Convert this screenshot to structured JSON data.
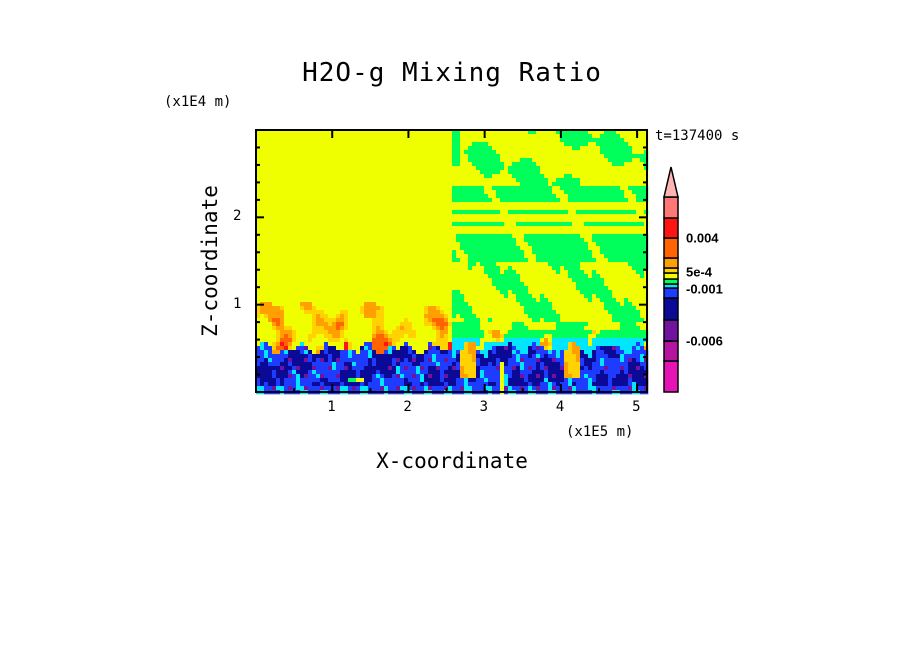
{
  "chart_data": {
    "type": "heatmap",
    "title": "H2O-g Mixing Ratio",
    "xlabel": "X-coordinate",
    "ylabel": "Z-coordinate",
    "x_unit": "(x1E5 m)",
    "y_unit": "(x1E4 m)",
    "xlim": [
      0,
      5.13
    ],
    "ylim": [
      0,
      3.0
    ],
    "x_ticks": [
      "1",
      "2",
      "3",
      "4",
      "5"
    ],
    "x_tick_values": [
      1,
      2,
      3,
      4,
      5
    ],
    "y_ticks": [
      "1",
      "2"
    ],
    "y_tick_values": [
      1,
      2
    ],
    "annotation": "t=137400 s",
    "colorbar": {
      "labels": [
        "0.004",
        "5e-4",
        "-0.001",
        "-0.006"
      ],
      "levels_bottom_to_top": [
        {
          "color": "#e614b4"
        },
        {
          "color": "#b414a0"
        },
        {
          "color": "#7014a0"
        },
        {
          "color": "#0a0a96"
        },
        {
          "color": "#1e3cff"
        },
        {
          "color": "#00e6ff"
        },
        {
          "color": "#00ff5a"
        },
        {
          "color": "#f0ff00"
        },
        {
          "color": "#ffd200"
        },
        {
          "color": "#ffa000"
        },
        {
          "color": "#ff6400"
        },
        {
          "color": "#ff1414"
        },
        {
          "color": "#ff7878"
        }
      ],
      "extend_color": "#ffb4b4"
    },
    "field_description_regions": {
      "left_half_x_lt": 2.56,
      "dominant_level": "yellow"
    }
  }
}
